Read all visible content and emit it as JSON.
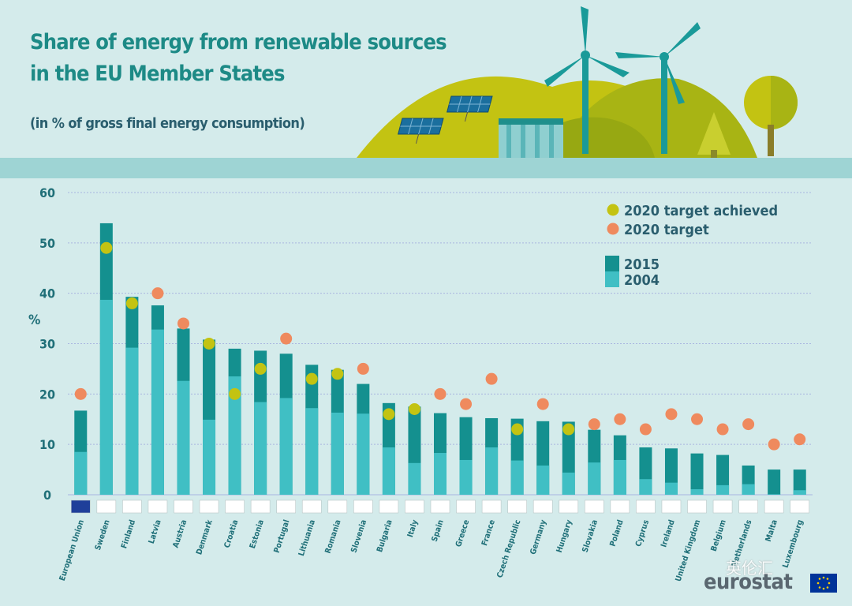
{
  "header": {
    "title_line1": "Share of energy from renewable sources",
    "title_line2": "in the EU Member States",
    "subtitle": "(in % of gross final energy consumption)"
  },
  "brand": {
    "name": "eurostat",
    "watermark": "英伦汇"
  },
  "colors": {
    "bar_2015": "#14908f",
    "bar_2004": "#40bfc4",
    "target_achieved": "#c3c312",
    "target": "#ef8a5e",
    "axis_text": "#1f6f78",
    "background": "#d4ebeb"
  },
  "chart_data": {
    "type": "bar",
    "ylabel": "%",
    "ylim": [
      0,
      60
    ],
    "yticks": [
      0,
      10,
      20,
      30,
      40,
      50,
      60
    ],
    "grid": true,
    "legend": {
      "placement": "top-right",
      "entries": [
        {
          "key": "target_achieved",
          "label": "2020 target achieved"
        },
        {
          "key": "target",
          "label": "2020 target"
        },
        {
          "key": "bar_2015",
          "label": "2015"
        },
        {
          "key": "bar_2004",
          "label": "2004"
        }
      ]
    },
    "categories": [
      "European Union",
      "Sweden",
      "Finland",
      "Latvia",
      "Austria",
      "Denmark",
      "Croatia",
      "Estonia",
      "Portugal",
      "Lithuania",
      "Romania",
      "Slovenia",
      "Bulgaria",
      "Italy",
      "Spain",
      "Greece",
      "France",
      "Czech Republic",
      "Germany",
      "Hungary",
      "Slovakia",
      "Poland",
      "Cyprus",
      "Ireland",
      "United Kingdom",
      "Belgium",
      "Netherlands",
      "Malta",
      "Luxembourg"
    ],
    "series": [
      {
        "name": "2015",
        "values": [
          16.7,
          53.9,
          39.3,
          37.6,
          33.0,
          30.8,
          29.0,
          28.6,
          28.0,
          25.8,
          24.8,
          22.0,
          18.2,
          17.5,
          16.2,
          15.4,
          15.2,
          15.1,
          14.6,
          14.5,
          12.9,
          11.8,
          9.4,
          9.2,
          8.2,
          7.9,
          5.8,
          5.0,
          5.0
        ]
      },
      {
        "name": "2004",
        "values": [
          8.5,
          38.7,
          29.2,
          32.8,
          22.6,
          14.9,
          23.5,
          18.4,
          19.2,
          17.2,
          16.3,
          16.1,
          9.4,
          6.3,
          8.3,
          6.9,
          9.4,
          6.8,
          5.8,
          4.4,
          6.4,
          6.9,
          3.1,
          2.4,
          1.1,
          1.9,
          2.1,
          0.1,
          0.9
        ]
      },
      {
        "name": "2020 target",
        "values": [
          20,
          49,
          38,
          40,
          34,
          30,
          20,
          25,
          31,
          23,
          24,
          25,
          16,
          17,
          20,
          18,
          23,
          13,
          18,
          13,
          14,
          15,
          13,
          16,
          15,
          13,
          14,
          10,
          11
        ]
      }
    ],
    "target_achieved": [
      false,
      true,
      true,
      false,
      false,
      true,
      true,
      true,
      false,
      true,
      true,
      false,
      true,
      true,
      false,
      false,
      false,
      true,
      false,
      true,
      false,
      false,
      false,
      false,
      false,
      false,
      false,
      false,
      false
    ]
  }
}
